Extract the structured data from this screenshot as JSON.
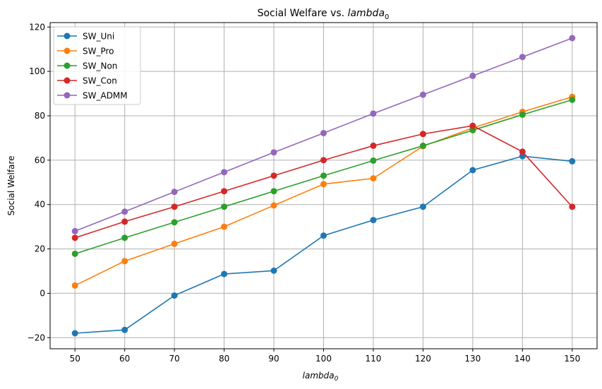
{
  "chart_data": {
    "type": "line",
    "title": "Social Welfare vs. ",
    "title_math": "lambda",
    "title_sub": "0",
    "xlabel": "lambda",
    "xlabel_sub": "0",
    "ylabel": "Social Welfare",
    "x": [
      50,
      60,
      70,
      80,
      90,
      100,
      110,
      120,
      130,
      140,
      150
    ],
    "xlim": [
      45,
      155
    ],
    "ylim": [
      -25,
      122
    ],
    "xticks": [
      "50",
      "60",
      "70",
      "80",
      "90",
      "100",
      "110",
      "120",
      "130",
      "140",
      "150"
    ],
    "yticks": [
      "−20",
      "0",
      "20",
      "40",
      "60",
      "80",
      "100",
      "120"
    ],
    "ytick_values": [
      -20,
      0,
      20,
      40,
      60,
      80,
      100,
      120
    ],
    "grid": true,
    "legend_position": "top-left",
    "series": [
      {
        "name": "SW_Uni",
        "color": "#1f77b4",
        "values": [
          -18,
          -16.5,
          -1,
          8.7,
          10.2,
          26,
          33,
          39,
          55.5,
          61.8,
          59.5
        ]
      },
      {
        "name": "SW_Pro",
        "color": "#ff7f0e",
        "values": [
          3.5,
          14.5,
          22.3,
          30,
          39.6,
          49.2,
          51.8,
          66.3,
          74.5,
          81.8,
          88.5
        ]
      },
      {
        "name": "SW_Non",
        "color": "#2ca02c",
        "values": [
          17.8,
          25,
          32,
          39,
          46,
          53,
          59.8,
          66.5,
          73.5,
          80.5,
          87.2
        ]
      },
      {
        "name": "SW_Con",
        "color": "#d62728",
        "values": [
          25,
          32.3,
          39,
          46,
          53,
          60,
          66.5,
          71.8,
          75.5,
          63.8,
          39
        ]
      },
      {
        "name": "SW_ADMM",
        "color": "#9467bd",
        "values": [
          28,
          36.8,
          45.7,
          54.6,
          63.5,
          72.2,
          81,
          89.5,
          98,
          106.5,
          115
        ]
      }
    ]
  }
}
